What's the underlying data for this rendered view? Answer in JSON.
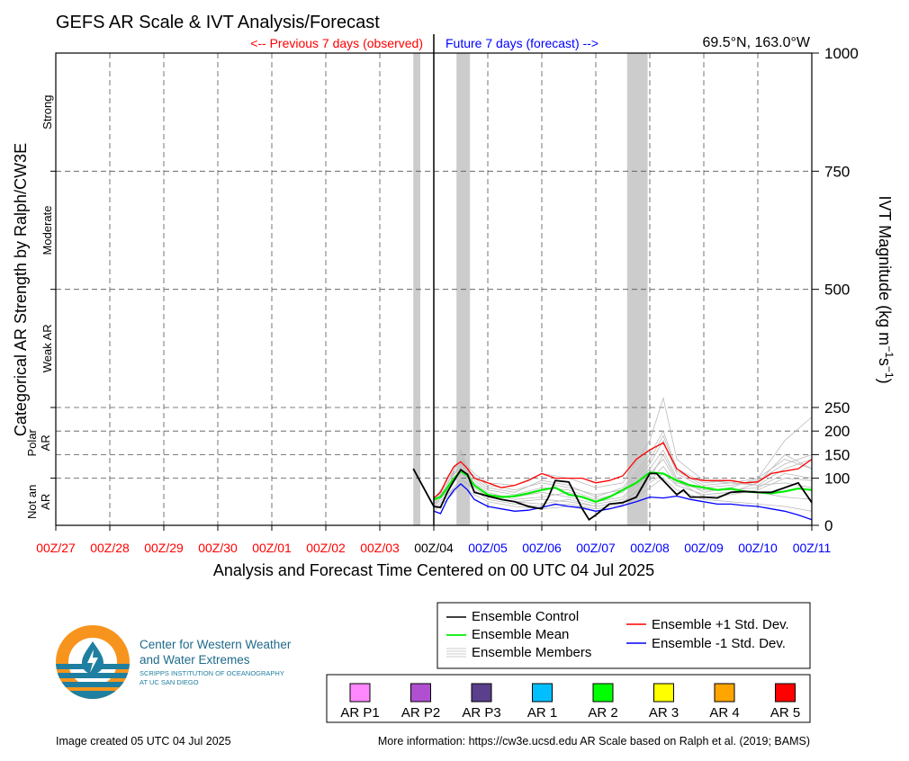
{
  "chart_data": {
    "type": "line",
    "title": "GEFS AR Scale & IVT Analysis/Forecast",
    "location": "69.5°N, 163.0°W",
    "previous_label": "<-- Previous 7 days (observed)",
    "future_label": "Future 7 days (forecast) -->",
    "xlabel": "Analysis and Forecast Time Centered on 00 UTC 04 Jul 2025",
    "ylabel_left": "Categorical AR Strength by Ralph/CW3E",
    "ylabel_right_parts": [
      "IVT Magnitude (kg m",
      "−1",
      "s",
      "−1",
      ")"
    ],
    "ylim": [
      0,
      1000
    ],
    "y_ticks": [
      0,
      100,
      150,
      200,
      250,
      500,
      750,
      1000
    ],
    "y_tick_labels": [
      "0",
      "100",
      "150",
      "200",
      "250",
      "500",
      "750",
      "1000"
    ],
    "x_domain": [
      0,
      14
    ],
    "x_ticks": [
      {
        "label": "00Z/27",
        "color": "#ff0000"
      },
      {
        "label": "00Z/28",
        "color": "#ff0000"
      },
      {
        "label": "00Z/29",
        "color": "#ff0000"
      },
      {
        "label": "00Z/30",
        "color": "#ff0000"
      },
      {
        "label": "00Z/01",
        "color": "#ff0000"
      },
      {
        "label": "00Z/02",
        "color": "#ff0000"
      },
      {
        "label": "00Z/03",
        "color": "#ff0000"
      },
      {
        "label": "00Z/04",
        "color": "#000000"
      },
      {
        "label": "00Z/05",
        "color": "#0000ff"
      },
      {
        "label": "00Z/06",
        "color": "#0000ff"
      },
      {
        "label": "00Z/07",
        "color": "#0000ff"
      },
      {
        "label": "00Z/08",
        "color": "#0000ff"
      },
      {
        "label": "00Z/09",
        "color": "#0000ff"
      },
      {
        "label": "00Z/10",
        "color": "#0000ff"
      },
      {
        "label": "00Z/11",
        "color": "#0000ff"
      }
    ],
    "categories": [
      {
        "label": "Strong",
        "y_mid": 875
      },
      {
        "label": "Moderate",
        "y_mid": 625
      },
      {
        "label": "Weak AR",
        "y_mid": 375
      },
      {
        "label": "Polar AR",
        "y_mid": 175
      },
      {
        "label": "Not an AR",
        "y_mid": 50
      }
    ],
    "shaded_periods": [
      [
        6.62,
        6.75
      ],
      [
        7.42,
        7.67
      ],
      [
        10.58,
        10.96
      ]
    ],
    "grid": true,
    "series": [
      {
        "name": "Ensemble Control",
        "color": "#000000",
        "x": [
          6.62,
          7,
          7.125,
          7.25,
          7.375,
          7.5,
          7.625,
          7.75,
          8,
          8.25,
          8.5,
          8.75,
          9,
          9.125,
          9.25,
          9.5,
          9.75,
          9.875,
          10,
          10.25,
          10.5,
          10.75,
          11,
          11.125,
          11.25,
          11.5,
          11.625,
          11.75,
          12,
          12.25,
          12.5,
          12.75,
          13,
          13.25,
          13.5,
          13.75,
          14
        ],
        "y": [
          120,
          40,
          38,
          70,
          95,
          118,
          108,
          70,
          62,
          55,
          50,
          40,
          35,
          60,
          95,
          92,
          35,
          12,
          22,
          45,
          48,
          60,
          110,
          110,
          95,
          65,
          75,
          60,
          60,
          58,
          70,
          72,
          70,
          70,
          80,
          90,
          48
        ]
      },
      {
        "name": "Ensemble Mean",
        "color": "#00ee00",
        "x": [
          7,
          7.125,
          7.25,
          7.375,
          7.5,
          7.625,
          7.75,
          8,
          8.25,
          8.5,
          8.75,
          9,
          9.25,
          9.5,
          9.75,
          10,
          10.25,
          10.5,
          10.75,
          11,
          11.25,
          11.5,
          11.75,
          12,
          12.25,
          12.5,
          12.75,
          13,
          13.25,
          13.5,
          13.75,
          14
        ],
        "y": [
          55,
          60,
          80,
          100,
          115,
          105,
          85,
          65,
          60,
          62,
          68,
          75,
          80,
          65,
          60,
          50,
          60,
          75,
          90,
          112,
          110,
          95,
          85,
          80,
          75,
          78,
          72,
          70,
          68,
          72,
          78,
          75
        ]
      },
      {
        "name": "Ensemble +1 Std. Dev.",
        "color": "#ff0000",
        "x": [
          7,
          7.125,
          7.25,
          7.375,
          7.5,
          7.625,
          7.75,
          8,
          8.25,
          8.5,
          8.75,
          9,
          9.25,
          9.5,
          9.75,
          10,
          10.25,
          10.5,
          10.75,
          11,
          11.25,
          11.5,
          11.75,
          12,
          12.25,
          12.5,
          12.75,
          13,
          13.25,
          13.5,
          13.75,
          14
        ],
        "y": [
          58,
          70,
          100,
          125,
          135,
          120,
          100,
          90,
          80,
          85,
          95,
          110,
          100,
          100,
          100,
          90,
          95,
          105,
          140,
          160,
          175,
          120,
          100,
          95,
          95,
          95,
          90,
          92,
          110,
          115,
          120,
          140
        ]
      },
      {
        "name": "Ensemble -1 Std. Dev.",
        "color": "#0000ff",
        "x": [
          7,
          7.125,
          7.25,
          7.375,
          7.5,
          7.625,
          7.75,
          8,
          8.25,
          8.5,
          8.75,
          9,
          9.25,
          9.5,
          9.75,
          10,
          10.25,
          10.5,
          10.75,
          11,
          11.25,
          11.5,
          11.75,
          12,
          12.25,
          12.5,
          12.75,
          13,
          13.25,
          13.5,
          13.75,
          14
        ],
        "y": [
          30,
          25,
          55,
          75,
          88,
          75,
          55,
          40,
          35,
          30,
          32,
          38,
          45,
          40,
          37,
          30,
          35,
          42,
          50,
          60,
          58,
          62,
          55,
          50,
          45,
          45,
          42,
          40,
          35,
          30,
          22,
          12
        ]
      }
    ],
    "ensemble_members_name": "Ensemble Members",
    "ensemble_members_color": "#bbbbbb",
    "ensemble_members": [
      {
        "x": [
          7,
          7.25,
          7.5,
          7.75,
          8,
          8.5,
          9,
          9.5,
          10,
          10.5,
          11,
          11.25,
          11.5,
          12,
          12.5,
          13,
          13.5,
          14
        ],
        "y": [
          50,
          90,
          130,
          100,
          80,
          70,
          95,
          85,
          60,
          80,
          150,
          200,
          120,
          90,
          95,
          85,
          120,
          140
        ]
      },
      {
        "x": [
          7,
          7.25,
          7.5,
          7.75,
          8,
          8.5,
          9,
          9.5,
          10,
          10.5,
          11,
          11.25,
          11.5,
          12,
          12.5,
          13,
          13.5,
          14
        ],
        "y": [
          40,
          75,
          110,
          90,
          70,
          55,
          60,
          70,
          50,
          60,
          120,
          160,
          100,
          70,
          80,
          100,
          180,
          230
        ]
      },
      {
        "x": [
          7,
          7.25,
          7.5,
          7.75,
          8,
          8.5,
          9,
          9.5,
          10,
          10.5,
          11,
          11.25,
          11.5,
          12,
          12.5,
          13,
          13.5,
          14
        ],
        "y": [
          45,
          70,
          160,
          80,
          60,
          50,
          45,
          55,
          40,
          50,
          90,
          110,
          85,
          65,
          70,
          90,
          150,
          120
        ]
      },
      {
        "x": [
          7,
          7.25,
          7.5,
          7.75,
          8,
          8.5,
          9,
          9.5,
          10,
          10.5,
          11,
          11.25,
          11.5,
          12,
          12.5,
          13,
          13.5,
          14
        ],
        "y": [
          35,
          60,
          100,
          75,
          55,
          45,
          40,
          45,
          35,
          45,
          100,
          150,
          95,
          60,
          65,
          75,
          100,
          95
        ]
      },
      {
        "x": [
          7,
          7.25,
          7.5,
          7.75,
          8,
          8.5,
          9,
          9.5,
          10,
          10.5,
          11,
          11.25,
          11.5,
          12,
          12.5,
          13,
          13.5,
          14
        ],
        "y": [
          55,
          95,
          140,
          110,
          90,
          85,
          110,
          100,
          80,
          90,
          180,
          270,
          140,
          95,
          90,
          85,
          90,
          80
        ]
      },
      {
        "x": [
          7,
          7.25,
          7.5,
          7.75,
          8,
          8.5,
          9,
          9.5,
          10,
          10.5,
          11,
          11.25,
          11.5,
          12,
          12.5,
          13,
          13.5,
          14
        ],
        "y": [
          30,
          55,
          85,
          65,
          50,
          40,
          35,
          40,
          30,
          40,
          80,
          100,
          75,
          55,
          50,
          45,
          40,
          30
        ]
      },
      {
        "x": [
          7,
          7.25,
          7.5,
          7.75,
          8,
          8.5,
          9,
          9.5,
          10,
          10.5,
          11,
          11.25,
          11.5,
          12,
          12.5,
          13,
          13.5,
          14
        ],
        "y": [
          50,
          80,
          120,
          95,
          75,
          65,
          80,
          75,
          55,
          70,
          130,
          180,
          110,
          80,
          85,
          95,
          130,
          150
        ]
      },
      {
        "x": [
          7,
          7.25,
          7.5,
          7.75,
          8,
          8.5,
          9,
          9.5,
          10,
          10.5,
          11,
          11.25,
          11.5,
          12,
          12.5,
          13,
          13.5,
          14
        ],
        "y": [
          45,
          85,
          150,
          85,
          65,
          60,
          70,
          60,
          45,
          55,
          110,
          140,
          90,
          75,
          75,
          80,
          110,
          100
        ]
      },
      {
        "x": [
          7,
          7.25,
          7.5,
          7.75,
          8,
          8.5,
          9,
          9.5,
          10,
          10.5,
          11,
          11.25,
          11.5,
          12,
          12.5,
          13,
          13.5,
          14
        ],
        "y": [
          40,
          65,
          95,
          80,
          60,
          50,
          55,
          50,
          40,
          50,
          95,
          125,
          85,
          65,
          70,
          70,
          60,
          55
        ]
      },
      {
        "x": [
          7,
          7.25,
          7.5,
          7.75,
          8,
          8.5,
          9,
          9.5,
          10,
          10.5,
          11,
          11.25,
          11.5,
          12,
          12.5,
          13,
          13.5,
          14
        ],
        "y": [
          55,
          90,
          125,
          105,
          85,
          75,
          90,
          80,
          65,
          75,
          140,
          190,
          115,
          85,
          90,
          100,
          140,
          120
        ]
      }
    ]
  },
  "legend": {
    "items": [
      {
        "label": "Ensemble Control",
        "color": "#000000",
        "kind": "line"
      },
      {
        "label": "Ensemble Mean",
        "color": "#00ee00",
        "kind": "line"
      },
      {
        "label": "Ensemble Members",
        "color": "#bbbbbb",
        "kind": "members"
      },
      {
        "label": "Ensemble +1 Std. Dev.",
        "color": "#ff0000",
        "kind": "line"
      },
      {
        "label": "Ensemble -1 Std. Dev.",
        "color": "#0000ff",
        "kind": "line"
      }
    ]
  },
  "ar_scale": [
    {
      "label": "AR P1",
      "color": "#ff88ff"
    },
    {
      "label": "AR P2",
      "color": "#b04fd0"
    },
    {
      "label": "AR P3",
      "color": "#5a3f8c"
    },
    {
      "label": "AR 1",
      "color": "#00bfff"
    },
    {
      "label": "AR 2",
      "color": "#00ff00"
    },
    {
      "label": "AR 3",
      "color": "#ffff00"
    },
    {
      "label": "AR 4",
      "color": "#ffa500"
    },
    {
      "label": "AR 5",
      "color": "#ff0000"
    }
  ],
  "logo": {
    "line1": "Center for Western Weather",
    "line2": "and Water Extremes",
    "line3": "SCRIPPS INSTITUTION OF OCEANOGRAPHY",
    "line4": "AT UC SAN DIEGO",
    "colors": {
      "orange": "#f7941d",
      "teal": "#1f7fa0"
    }
  },
  "footer": {
    "created": "Image created 05 UTC 04 Jul 2025",
    "more_info": "More information: https://cw3e.ucsd.edu AR Scale based on Ralph et al. (2019; BAMS)"
  }
}
